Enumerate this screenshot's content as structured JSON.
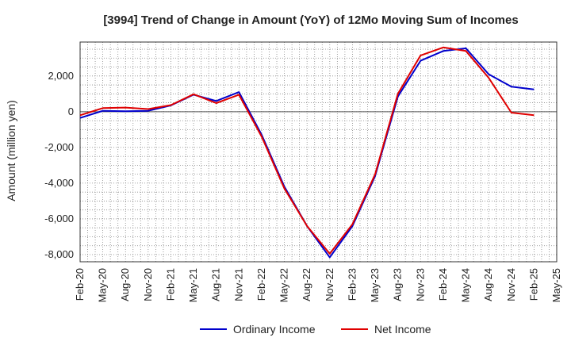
{
  "chart_data": {
    "type": "line",
    "title": "[3994]  Trend of Change in Amount (YoY) of 12Mo Moving Sum of Incomes",
    "ylabel": "Amount (million yen)",
    "xlabel": "",
    "ylim": [
      -8400,
      3900
    ],
    "yticks": [
      2000,
      0,
      -2000,
      -4000,
      -6000,
      -8000
    ],
    "ytick_labels": [
      "2,000",
      "0",
      "-2,000",
      "-4,000",
      "-6,000",
      "-8,000"
    ],
    "x_tick_labels": [
      "Feb-20",
      "May-20",
      "Aug-20",
      "Nov-20",
      "Feb-21",
      "May-21",
      "Aug-21",
      "Nov-21",
      "Feb-22",
      "May-22",
      "Aug-22",
      "Nov-22",
      "Feb-23",
      "May-23",
      "Aug-23",
      "Nov-23",
      "Feb-24",
      "May-24",
      "Aug-24",
      "Nov-24",
      "Feb-25",
      "May-25"
    ],
    "x": [
      "Feb-20",
      "May-20",
      "Aug-20",
      "Nov-20",
      "Feb-21",
      "May-21",
      "Aug-21",
      "Nov-21",
      "Feb-22",
      "May-22",
      "Aug-22",
      "Nov-22",
      "Feb-23",
      "May-23",
      "Aug-23",
      "Nov-23",
      "Feb-24",
      "May-24",
      "Aug-24",
      "Nov-24",
      "Feb-25"
    ],
    "grid": true,
    "legend_position": "bottom",
    "series": [
      {
        "name": "Ordinary Income",
        "color": "#0000cc",
        "values": [
          -350,
          50,
          30,
          50,
          350,
          950,
          600,
          1100,
          -1300,
          -4200,
          -6400,
          -8150,
          -6400,
          -3600,
          850,
          2850,
          3400,
          3550,
          2100,
          1400,
          1250
        ]
      },
      {
        "name": "Net Income",
        "color": "#e00000",
        "values": [
          -200,
          200,
          230,
          150,
          370,
          980,
          480,
          950,
          -1400,
          -4300,
          -6400,
          -7950,
          -6300,
          -3500,
          1000,
          3150,
          3600,
          3400,
          1900,
          -50,
          -200
        ]
      }
    ]
  }
}
